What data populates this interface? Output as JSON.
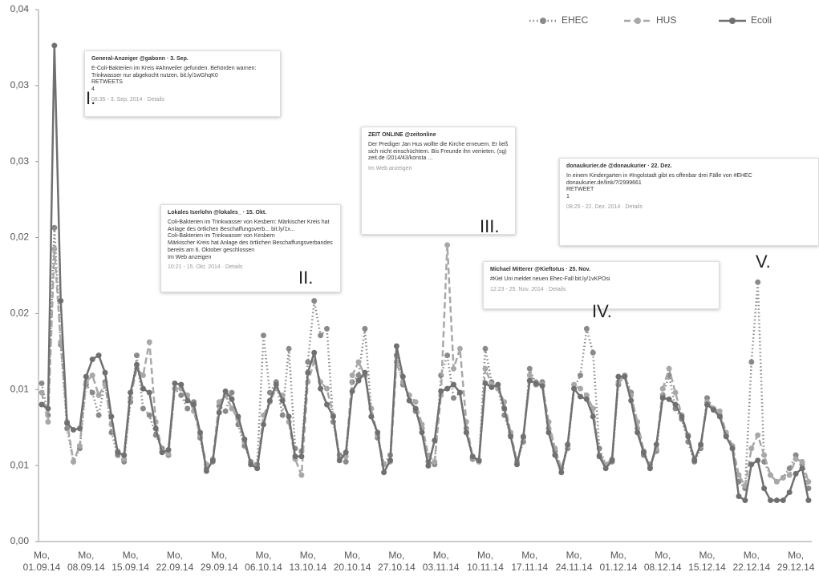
{
  "chart_data": {
    "type": "line",
    "categories": [
      "Mo, 01.09.14",
      null,
      null,
      null,
      null,
      null,
      null,
      "Mo, 08.09.14",
      null,
      null,
      null,
      null,
      null,
      null,
      "Mo, 15.09.14",
      null,
      null,
      null,
      null,
      null,
      null,
      "Mo, 22.09.14",
      null,
      null,
      null,
      null,
      null,
      null,
      "Mo, 29.09.14",
      null,
      null,
      null,
      null,
      null,
      null,
      "Mo, 06.10.14",
      null,
      null,
      null,
      null,
      null,
      null,
      "Mo, 13.10.14",
      null,
      null,
      null,
      null,
      null,
      null,
      "Mo, 20.10.14",
      null,
      null,
      null,
      null,
      null,
      null,
      "Mo, 27.10.14",
      null,
      null,
      null,
      null,
      null,
      null,
      "Mo, 03.11.14",
      null,
      null,
      null,
      null,
      null,
      null,
      "Mo, 10.11.14",
      null,
      null,
      null,
      null,
      null,
      null,
      "Mo, 17.11.14",
      null,
      null,
      null,
      null,
      null,
      null,
      "Mo, 24.11.14",
      null,
      null,
      null,
      null,
      null,
      null,
      "Mo, 01.12.14",
      null,
      null,
      null,
      null,
      null,
      null,
      "Mo, 08.12.14",
      null,
      null,
      null,
      null,
      null,
      null,
      "Mo, 15.12.14",
      null,
      null,
      null,
      null,
      null,
      null,
      "Mo, 22.12.14",
      null,
      null,
      null,
      null,
      null,
      null,
      "Mo, 29.12.14",
      null,
      null
    ],
    "series": [
      {
        "name": "EHEC",
        "color": "#8a8a8a",
        "style": "dotted",
        "values": [
          0.0119,
          0.0095,
          0.0236,
          0.0148,
          0.0085,
          0.006,
          0.007,
          0.0118,
          0.0112,
          0.0095,
          0.012,
          0.0082,
          0.0065,
          0.006,
          0.0105,
          0.014,
          0.01,
          0.0095,
          0.008,
          0.007,
          0.0065,
          0.0115,
          0.011,
          0.01,
          0.0105,
          0.0078,
          0.0055,
          0.006,
          0.0102,
          0.0098,
          0.0112,
          0.0088,
          0.0072,
          0.006,
          0.0058,
          0.0155,
          0.0112,
          0.012,
          0.0095,
          0.0145,
          0.007,
          0.0068,
          0.0135,
          0.0181,
          0.0155,
          0.016,
          0.009,
          0.0065,
          0.006,
          0.012,
          0.0125,
          0.016,
          0.01,
          0.0078,
          0.0058,
          0.0065,
          0.014,
          0.0118,
          0.011,
          0.0098,
          0.0085,
          0.006,
          0.0058,
          0.0125,
          0.014,
          0.0108,
          0.0112,
          0.0085,
          0.0062,
          0.006,
          0.0145,
          0.012,
          0.0115,
          0.0095,
          0.008,
          0.006,
          0.0075,
          0.013,
          0.0118,
          0.012,
          0.0085,
          0.0068,
          0.0055,
          0.007,
          0.0115,
          0.0125,
          0.016,
          0.0142,
          0.007,
          0.0058,
          0.006,
          0.0118,
          0.0125,
          0.0112,
          0.0085,
          0.0065,
          0.0058,
          0.0068,
          0.011,
          0.0125,
          0.01,
          0.0092,
          0.0075,
          0.006,
          0.007,
          0.0108,
          0.01,
          0.0095,
          0.008,
          0.007,
          0.0045,
          0.004,
          0.0135,
          0.0195,
          0.006,
          0.005,
          0.0045,
          0.0048,
          0.0055,
          0.0065,
          0.0058,
          0.004
        ]
      },
      {
        "name": "HUS",
        "color": "#a8a8a8",
        "style": "dashed",
        "values": [
          0.0112,
          0.009,
          0.022,
          0.015,
          0.009,
          0.006,
          0.0072,
          0.012,
          0.0125,
          0.011,
          0.0118,
          0.0088,
          0.0068,
          0.0062,
          0.0108,
          0.013,
          0.0125,
          0.015,
          0.009,
          0.0068,
          0.0066,
          0.0115,
          0.0115,
          0.011,
          0.0098,
          0.008,
          0.0058,
          0.0062,
          0.0105,
          0.011,
          0.01,
          0.0092,
          0.0075,
          0.0058,
          0.0056,
          0.0095,
          0.0105,
          0.0115,
          0.011,
          0.009,
          0.0062,
          0.005,
          0.012,
          0.0135,
          0.012,
          0.0115,
          0.0095,
          0.0063,
          0.0064,
          0.0125,
          0.0135,
          0.0125,
          0.01,
          0.008,
          0.0058,
          0.006,
          0.0135,
          0.012,
          0.011,
          0.0105,
          0.0088,
          0.0065,
          0.006,
          0.011,
          0.0223,
          0.013,
          0.0145,
          0.009,
          0.0063,
          0.006,
          0.013,
          0.0118,
          0.0115,
          0.0105,
          0.0082,
          0.006,
          0.0078,
          0.0125,
          0.012,
          0.0118,
          0.009,
          0.007,
          0.0055,
          0.0072,
          0.0118,
          0.0115,
          0.011,
          0.01,
          0.0065,
          0.0058,
          0.0062,
          0.012,
          0.0125,
          0.011,
          0.009,
          0.0068,
          0.0056,
          0.007,
          0.0115,
          0.013,
          0.0112,
          0.0095,
          0.008,
          0.0062,
          0.0072,
          0.0105,
          0.01,
          0.0098,
          0.0082,
          0.0072,
          0.005,
          0.0042,
          0.007,
          0.008,
          0.0065,
          0.005,
          0.0045,
          0.0048,
          0.005,
          0.0062,
          0.006,
          0.0045
        ]
      },
      {
        "name": "Ecoli",
        "color": "#707070",
        "style": "solid",
        "values": [
          0.0103,
          0.01,
          0.0373,
          0.0181,
          0.0089,
          0.0084,
          0.0085,
          0.0124,
          0.0137,
          0.014,
          0.0127,
          0.0094,
          0.0067,
          0.0065,
          0.0112,
          0.0133,
          0.0115,
          0.0112,
          0.0085,
          0.0067,
          0.0069,
          0.0119,
          0.0118,
          0.0106,
          0.0103,
          0.0082,
          0.0053,
          0.0061,
          0.0097,
          0.0113,
          0.0107,
          0.0094,
          0.0077,
          0.0058,
          0.0055,
          0.0088,
          0.0106,
          0.0118,
          0.0106,
          0.0094,
          0.0064,
          0.0064,
          0.0127,
          0.0142,
          0.0115,
          0.0103,
          0.0094,
          0.0061,
          0.0067,
          0.0113,
          0.0121,
          0.0127,
          0.0094,
          0.0082,
          0.0052,
          0.0061,
          0.0147,
          0.0124,
          0.0106,
          0.01,
          0.0082,
          0.0057,
          0.0076,
          0.0113,
          0.0115,
          0.0118,
          0.0112,
          0.0082,
          0.0064,
          0.0061,
          0.0119,
          0.0116,
          0.0118,
          0.01,
          0.0079,
          0.0058,
          0.0079,
          0.0121,
          0.0119,
          0.0117,
          0.0082,
          0.0065,
          0.0052,
          0.0073,
          0.0115,
          0.0109,
          0.0107,
          0.0094,
          0.0064,
          0.0055,
          0.0061,
          0.0124,
          0.0124,
          0.0106,
          0.0082,
          0.0067,
          0.0055,
          0.0073,
          0.0108,
          0.0107,
          0.0103,
          0.0094,
          0.0079,
          0.0061,
          0.0073,
          0.0103,
          0.0099,
          0.0094,
          0.0079,
          0.007,
          0.0034,
          0.0031,
          0.0058,
          0.0061,
          0.004,
          0.0031,
          0.0031,
          0.0031,
          0.0037,
          0.0051,
          0.0055,
          0.0031
        ]
      }
    ],
    "ylim": [
      0,
      0.04
    ],
    "yticks": [
      {
        "value": 0,
        "label": "0,00"
      },
      {
        "value": 0.005714,
        "label": "0,01"
      },
      {
        "value": 0.011429,
        "label": "0,01"
      },
      {
        "value": 0.017143,
        "label": "0,02"
      },
      {
        "value": 0.022857,
        "label": "0,02"
      },
      {
        "value": 0.028571,
        "label": "0,03"
      },
      {
        "value": 0.034286,
        "label": "0,03"
      },
      {
        "value": 0.04,
        "label": "0,04"
      }
    ],
    "legend": "top-right",
    "annotations": [
      {
        "label": "I.",
        "author": "General-Anzeiger @gabonn · 3. Sep.",
        "lines": [
          "E-Coli-Bakterien im Kreis #Ahrweiler gefunden. Behörden warnen: Trinkwasser nur abgekocht nutzen. bit.ly/1wGhqK0",
          "RETWEETS",
          "4"
        ],
        "footer": "08:35 - 3. Sep. 2014 · Details"
      },
      {
        "label": "II.",
        "author": "Lokales Iserlohn @lokales_ · 15. Okt.",
        "lines": [
          "Coli-Bakterien im Trinkwasser von Kesbern: Märkischer Kreis hat Anlage des örtlichen Beschaffungsverb... bit.ly/1x...",
          "Coli-Bakterien im Trinkwasser von Kesbern",
          "Märkischer Kreis hat Anlage des örtlichen Beschaffungsverbandes bereits am 6. Oktober geschlossen",
          "Im Web anzeigen"
        ],
        "footer": "10:21 - 15. Okt. 2014 · Details"
      },
      {
        "label": "III.",
        "author": "ZEIT ONLINE @zeitonline",
        "lines": [
          "Der Prediger Jan Hus wollte die Kirche erneuern. Er ließ sich nicht einschüchtern. Bis Freunde ihn verrieten. (sg) zeit.de /2014/43/konsta ..."
        ],
        "footer": "Im Web anzeigen"
      },
      {
        "label": "IV.",
        "author": "Michael Mitterer @Kieftotus · 25. Nov.",
        "lines": [
          "#Kiel Uni meldet neuen Ehec-Fall bit.ly/1vKPOsi"
        ],
        "footer": "12:23 - 25. Nov. 2014 · Details"
      },
      {
        "label": "V.",
        "author": "donaukurier.de @donaukurier · 22. Dez.",
        "lines": [
          "In einem Kindergarten in #Ingolstadt gibt es offenbar drei Fälle von #EHEC donaukurier.de/link/?/2999661",
          "RETWEET",
          "1"
        ],
        "footer": "08:25 - 22. Dez. 2014 · Details"
      }
    ]
  }
}
